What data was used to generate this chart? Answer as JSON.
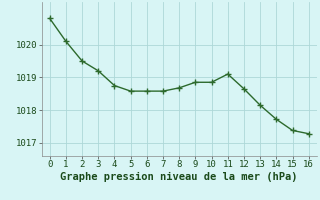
{
  "x": [
    0,
    1,
    2,
    3,
    4,
    5,
    6,
    7,
    8,
    9,
    10,
    11,
    12,
    13,
    14,
    15,
    16
  ],
  "y": [
    1020.8,
    1020.1,
    1019.5,
    1019.2,
    1018.75,
    1018.58,
    1018.58,
    1018.58,
    1018.68,
    1018.85,
    1018.85,
    1019.1,
    1018.65,
    1018.15,
    1017.72,
    1017.38,
    1017.28
  ],
  "line_color": "#2d6a2d",
  "marker_color": "#2d6a2d",
  "background_color": "#d8f5f5",
  "grid_color": "#aed8d8",
  "xlabel": "Graphe pression niveau de la mer (hPa)",
  "xlabel_fontsize": 7.5,
  "xlim": [
    -0.5,
    16.5
  ],
  "ylim": [
    1016.6,
    1021.3
  ],
  "yticks": [
    1017,
    1018,
    1019,
    1020
  ],
  "xticks": [
    0,
    1,
    2,
    3,
    4,
    5,
    6,
    7,
    8,
    9,
    10,
    11,
    12,
    13,
    14,
    15,
    16
  ],
  "tick_fontsize": 6.5,
  "line_width": 1.0,
  "marker_size": 2.5
}
